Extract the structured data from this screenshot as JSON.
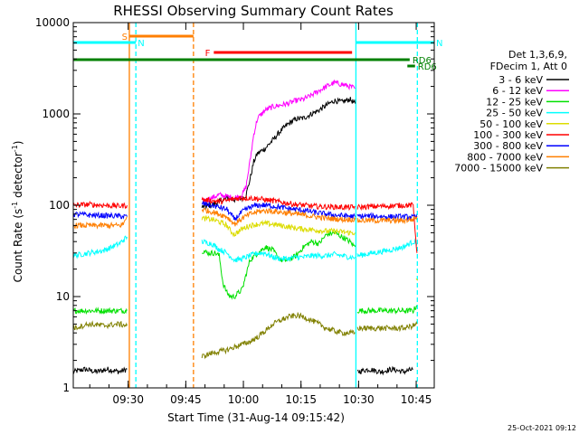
{
  "chart_data": {
    "type": "line",
    "title": "RHESSI Observing Summary Count Rates",
    "xlabel": "Start Time (31-Aug-14 09:15:42)",
    "ylabel_parts": [
      "Count Rate (s",
      "-1",
      " detector",
      "-1",
      ")"
    ],
    "y_scale": "log",
    "ylim": [
      1,
      10000
    ],
    "xlim_minutes": [
      0,
      94
    ],
    "x_ticks": [
      {
        "label": "09:30",
        "minute": 14.3
      },
      {
        "label": "09:45",
        "minute": 29.3
      },
      {
        "label": "10:00",
        "minute": 44.3
      },
      {
        "label": "10:15",
        "minute": 59.3
      },
      {
        "label": "10:30",
        "minute": 74.3
      },
      {
        "label": "10:45",
        "minute": 89.3
      }
    ],
    "y_ticks": [
      {
        "label": "1",
        "value": 1
      },
      {
        "label": "10",
        "value": 10
      },
      {
        "label": "100",
        "value": 100
      },
      {
        "label": "1000",
        "value": 1000
      },
      {
        "label": "10000",
        "value": 10000
      }
    ],
    "legend_header": [
      "Det 1,3,6,9,",
      "FDecim 1, Att 0"
    ],
    "legend_position": "right",
    "grid": false,
    "timestamp": "25-Oct-2021 09:12",
    "flags": [
      {
        "label": "S",
        "x_start": 14.6,
        "x_end": 31.3,
        "color": "#ff7f00"
      },
      {
        "label": "N",
        "x_start": 0,
        "x_end": 16.3,
        "color": "#00ffff"
      },
      {
        "label": "N",
        "x_start": 73.6,
        "x_end": 94,
        "color": "#00ffff"
      },
      {
        "label": "F",
        "x_start": 36.6,
        "x_end": 72.6,
        "color": "#ff0000"
      },
      {
        "label": "RD6",
        "x_start": 0,
        "x_end": 87.6,
        "color": "#008000"
      },
      {
        "label": "RD6",
        "x_start": 87.0,
        "x_end": 89.0,
        "color": "#008000"
      }
    ],
    "vlines": [
      {
        "x": 14.6,
        "color": "#ff7f00",
        "style": "solid"
      },
      {
        "x": 16.3,
        "color": "#00ffff",
        "style": "dashed"
      },
      {
        "x": 31.3,
        "color": "#ff7f00",
        "style": "dashed"
      },
      {
        "x": 73.6,
        "color": "#00ffff",
        "style": "solid"
      },
      {
        "x": 89.6,
        "color": "#00ffff",
        "style": "dashed"
      }
    ],
    "series": [
      {
        "name": "3 - 6 keV",
        "color": "#000000",
        "segments": [
          {
            "x": [
              0,
              3,
              6,
              9,
              12,
              14
            ],
            "y": [
              1.5,
              1.6,
              1.5,
              1.6,
              1.5,
              1.6
            ]
          },
          {
            "x": [
              33.5,
              36,
              38,
              40,
              42,
              44,
              45,
              46,
              47,
              48,
              50,
              52,
              54,
              56,
              58,
              60,
              62,
              64,
              66,
              68,
              70,
              72,
              73.4
            ],
            "y": [
              95,
              100,
              110,
              120,
              115,
              120,
              130,
              190,
              300,
              370,
              420,
              520,
              650,
              780,
              880,
              900,
              1000,
              1100,
              1250,
              1400,
              1350,
              1450,
              1300
            ]
          },
          {
            "x": [
              74,
              77,
              80,
              83,
              86,
              88.5
            ],
            "y": [
              1.5,
              1.6,
              1.5,
              1.6,
              1.5,
              1.6
            ]
          }
        ]
      },
      {
        "name": "6 - 12 keV",
        "color": "#ff00ff",
        "segments": [
          {
            "x": [
              33.5,
              36,
              38,
              40,
              42,
              44,
              45,
              46,
              47,
              48,
              50,
              52,
              54,
              56,
              58,
              60,
              62,
              64,
              66,
              68,
              70,
              72,
              73.4
            ],
            "y": [
              110,
              120,
              130,
              125,
              120,
              130,
              160,
              300,
              600,
              900,
              1100,
              1200,
              1250,
              1300,
              1400,
              1450,
              1600,
              1800,
              2000,
              2200,
              2100,
              2000,
              1900
            ]
          }
        ]
      },
      {
        "name": "12 - 25 keV",
        "color": "#00e000",
        "segments": [
          {
            "x": [
              0,
              4,
              8,
              12,
              14
            ],
            "y": [
              7,
              7,
              7,
              7,
              7
            ]
          },
          {
            "x": [
              33.5,
              35,
              37,
              38,
              39,
              40,
              41,
              42,
              43,
              44,
              46,
              48,
              50,
              52,
              54,
              56,
              58,
              60,
              62,
              64,
              66,
              68,
              70,
              72,
              73.4
            ],
            "y": [
              32,
              30,
              30,
              28,
              14,
              11,
              10,
              10,
              11,
              12,
              25,
              30,
              35,
              32,
              25,
              25,
              28,
              35,
              40,
              38,
              48,
              50,
              45,
              40,
              35
            ]
          },
          {
            "x": [
              74,
              78,
              82,
              86,
              88.5,
              89.5
            ],
            "y": [
              7,
              7,
              7,
              7,
              7,
              8
            ]
          }
        ]
      },
      {
        "name": "25 - 50 keV",
        "color": "#00ffff",
        "segments": [
          {
            "x": [
              0,
              4,
              8,
              12,
              14
            ],
            "y": [
              28,
              30,
              32,
              38,
              45
            ]
          },
          {
            "x": [
              33.5,
              36,
              38,
              40,
              42,
              44,
              46,
              48,
              50,
              52,
              54,
              56,
              58,
              60,
              62,
              64,
              66,
              68,
              70,
              72,
              73.4
            ],
            "y": [
              40,
              38,
              33,
              30,
              25,
              26,
              28,
              30,
              30,
              27,
              26,
              26,
              27,
              27,
              28,
              28,
              28,
              29,
              28,
              27,
              27
            ]
          },
          {
            "x": [
              74,
              78,
              82,
              86,
              88.5,
              89.5
            ],
            "y": [
              28,
              30,
              32,
              35,
              40,
              38
            ]
          }
        ]
      },
      {
        "name": "50 - 100 keV",
        "color": "#dcdc00",
        "segments": [
          {
            "x": [
              33.5,
              36,
              38,
              40,
              41,
              42,
              44,
              46,
              48,
              50,
              52,
              54,
              56,
              58,
              60,
              62,
              64,
              66,
              68,
              70,
              72,
              73.4
            ],
            "y": [
              72,
              70,
              66,
              60,
              52,
              48,
              55,
              60,
              62,
              63,
              62,
              60,
              58,
              56,
              55,
              54,
              53,
              52,
              52,
              51,
              50,
              50
            ]
          },
          {
            "x": [
              89.3,
              89.7
            ],
            "y": [
              15,
              15
            ]
          }
        ]
      },
      {
        "name": "100 - 300 keV",
        "color": "#ff0000",
        "segments": [
          {
            "x": [
              0,
              4,
              8,
              12,
              14
            ],
            "y": [
              100,
              102,
              100,
              98,
              100
            ]
          },
          {
            "x": [
              33.5,
              36,
              38,
              40,
              42,
              44,
              46,
              48,
              50,
              52,
              54,
              56,
              58,
              60,
              62,
              64,
              66,
              68,
              70,
              72,
              73.4
            ],
            "y": [
              115,
              112,
              110,
              112,
              118,
              120,
              120,
              118,
              115,
              112,
              108,
              105,
              102,
              100,
              98,
              97,
              96,
              96,
              95,
              95,
              95
            ]
          },
          {
            "x": [
              74,
              78,
              82,
              86,
              88.5,
              89.5
            ],
            "y": [
              95,
              97,
              98,
              100,
              100,
              30
            ]
          }
        ]
      },
      {
        "name": "300 - 800 keV",
        "color": "#0000ff",
        "segments": [
          {
            "x": [
              0,
              4,
              8,
              12,
              14
            ],
            "y": [
              80,
              78,
              77,
              76,
              75
            ]
          },
          {
            "x": [
              33.5,
              36,
              38,
              40,
              42,
              44,
              46,
              48,
              50,
              52,
              54,
              56,
              58,
              60,
              62,
              64,
              66,
              68,
              70,
              72,
              73.4
            ],
            "y": [
              105,
              100,
              95,
              90,
              70,
              85,
              95,
              100,
              100,
              98,
              95,
              92,
              90,
              88,
              85,
              82,
              80,
              78,
              77,
              76,
              75
            ]
          },
          {
            "x": [
              74,
              78,
              82,
              86,
              88.5,
              89.5
            ],
            "y": [
              76,
              76,
              75,
              75,
              74,
              74
            ]
          }
        ]
      },
      {
        "name": "800 - 7000 keV",
        "color": "#ff7f00",
        "segments": [
          {
            "x": [
              0,
              4,
              8,
              12,
              13,
              14
            ],
            "y": [
              60,
              60,
              60,
              60,
              62,
              75
            ]
          },
          {
            "x": [
              33.5,
              36,
              38,
              40,
              42,
              44,
              46,
              48,
              50,
              52,
              54,
              56,
              58,
              60,
              62,
              64,
              66,
              68,
              70,
              72,
              73.4
            ],
            "y": [
              90,
              85,
              80,
              75,
              62,
              72,
              80,
              85,
              87,
              86,
              84,
              82,
              80,
              78,
              76,
              74,
              72,
              71,
              70,
              70,
              70
            ]
          },
          {
            "x": [
              74,
              78,
              82,
              86,
              88.5,
              89.5
            ],
            "y": [
              68,
              68,
              68,
              68,
              70,
              75
            ]
          }
        ]
      },
      {
        "name": "7000 - 15000 keV",
        "color": "#808000",
        "segments": [
          {
            "x": [
              0,
              4,
              8,
              12,
              14
            ],
            "y": [
              4.5,
              5,
              4.8,
              5,
              4.8
            ]
          },
          {
            "x": [
              33.5,
              36,
              38,
              40,
              42,
              44,
              46,
              48,
              50,
              52,
              54,
              56,
              58,
              60,
              62,
              64,
              66,
              68,
              70,
              72,
              73.4
            ],
            "y": [
              2.2,
              2.4,
              2.5,
              2.6,
              2.8,
              3,
              3.2,
              3.6,
              4.2,
              5,
              5.5,
              6,
              6.2,
              6,
              5.5,
              5,
              4.5,
              4.2,
              4,
              4,
              4
            ]
          },
          {
            "x": [
              74,
              78,
              82,
              86,
              88.5,
              89.5
            ],
            "y": [
              4.5,
              4.5,
              4.5,
              4.5,
              4.8,
              5
            ]
          }
        ]
      }
    ]
  }
}
